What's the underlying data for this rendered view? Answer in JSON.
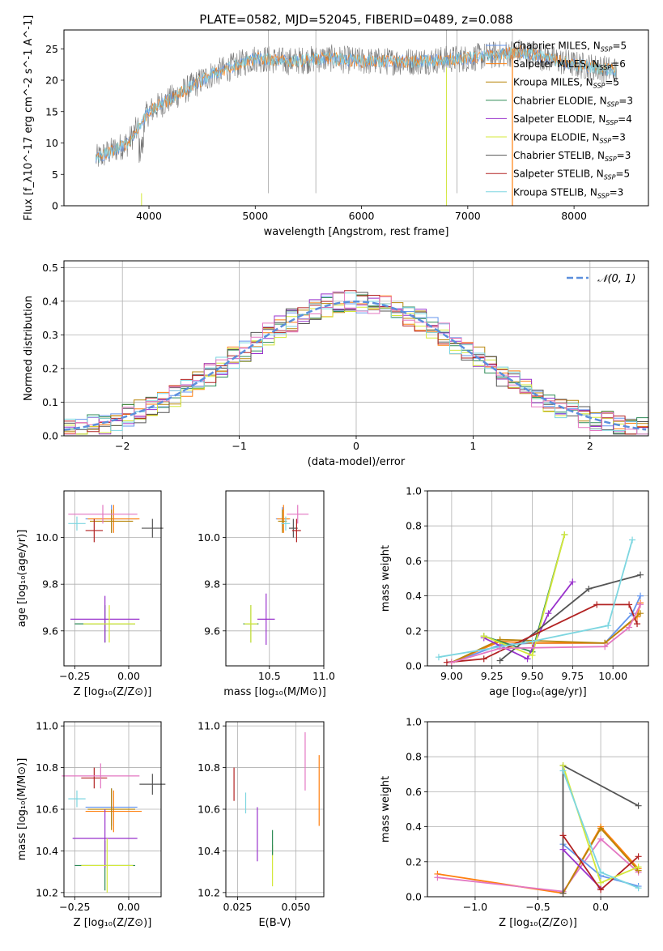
{
  "figure_title": "PLATE=0582, MJD=52045, FIBERID=0489, z=0.088",
  "colors": {
    "Chabrier MILES": "#6495ed",
    "Salpeter MILES": "#ff7f0e",
    "Kroupa MILES": "#b8860b",
    "Chabrier ELODIE": "#2e8b57",
    "Salpeter ELODIE": "#9932cc",
    "Kroupa ELODIE": "#d4e83a",
    "Chabrier STELIB": "#555555",
    "Salpeter STELIB": "#b22222",
    "Kroupa STELIB": "#7dd6e0",
    "pink": "#e377c2",
    "normal": "#5b8fdc"
  },
  "chart_data": [
    {
      "id": "spectrum",
      "type": "line",
      "title": "PLATE=0582, MJD=52045, FIBERID=0489, z=0.088",
      "xlabel": "wavelength [Angstrom, rest frame]",
      "ylabel": "Flux [f_λ10^-17 erg cm^-2 s^-1 A^-1]",
      "xlim": [
        3200,
        8700
      ],
      "ylim": [
        0,
        28
      ],
      "xticks": [
        4000,
        5000,
        6000,
        7000,
        8000
      ],
      "yticks": [
        0,
        5,
        10,
        15,
        20,
        25
      ],
      "legend_position": "right",
      "legend": [
        {
          "base": "Chabrier MILES, N",
          "n": "5"
        },
        {
          "base": "Salpeter MILES, N",
          "n": "6"
        },
        {
          "base": "Kroupa MILES, N",
          "n": "5"
        },
        {
          "base": "Chabrier ELODIE, N",
          "n": "3"
        },
        {
          "base": "Salpeter ELODIE, N",
          "n": "4"
        },
        {
          "base": "Kroupa ELODIE, N",
          "n": "3"
        },
        {
          "base": "Chabrier STELIB, N",
          "n": "3"
        },
        {
          "base": "Salpeter STELIB, N",
          "n": "5"
        },
        {
          "base": "Kroupa STELIB, N",
          "n": "3"
        }
      ],
      "legend_sub": "SSP",
      "continuum": {
        "x": [
          3500,
          3800,
          4000,
          4300,
          4600,
          5000,
          5300,
          5700,
          6000,
          6500,
          7000,
          7500,
          8000,
          8400
        ],
        "y": [
          7.5,
          10,
          15,
          18,
          21,
          23.5,
          23,
          23.5,
          23,
          23,
          23.5,
          24.5,
          22.5,
          21.5
        ]
      },
      "grid": false
    },
    {
      "id": "residuals",
      "type": "line",
      "xlabel": "(data-model)/error",
      "ylabel": "Normed distribution",
      "xlim": [
        -2.5,
        2.5
      ],
      "ylim": [
        0,
        0.52
      ],
      "xticks": [
        -2,
        -1,
        0,
        1,
        2
      ],
      "yticks": [
        0.0,
        0.1,
        0.2,
        0.3,
        0.4,
        0.5
      ],
      "legend_label": "𝒩(0, 1)",
      "legend_position": "upper right",
      "grid": true
    },
    {
      "id": "age_vs_Z",
      "type": "scatter",
      "xlabel": "Z [log₁₀(Z/Z⊙)]",
      "ylabel": "age  [log₁₀(age/yr)]",
      "xlim": [
        -0.3,
        0.15
      ],
      "ylim": [
        9.45,
        10.2
      ],
      "xticks": [
        -0.25,
        0.0
      ],
      "yticks": [
        9.6,
        9.8,
        10.0
      ],
      "grid": true,
      "points": [
        {
          "x": -0.08,
          "y": 10.08,
          "xerr": 0.12,
          "yerr": 0.06,
          "color": "#6495ed"
        },
        {
          "x": -0.07,
          "y": 10.08,
          "xerr": 0.12,
          "yerr": 0.06,
          "color": "#ff7f0e"
        },
        {
          "x": -0.08,
          "y": 10.07,
          "xerr": 0.1,
          "yerr": 0.05,
          "color": "#b8860b"
        },
        {
          "x": -0.11,
          "y": 9.63,
          "xerr": 0.14,
          "yerr": 0.08,
          "color": "#2e8b57"
        },
        {
          "x": -0.11,
          "y": 9.65,
          "xerr": 0.16,
          "yerr": 0.1,
          "color": "#9932cc"
        },
        {
          "x": -0.09,
          "y": 9.63,
          "xerr": 0.12,
          "yerr": 0.08,
          "color": "#d4e83a"
        },
        {
          "x": 0.11,
          "y": 10.04,
          "xerr": 0.05,
          "yerr": 0.04,
          "color": "#555555"
        },
        {
          "x": -0.16,
          "y": 10.03,
          "xerr": 0.04,
          "yerr": 0.05,
          "color": "#b22222"
        },
        {
          "x": -0.24,
          "y": 10.06,
          "xerr": 0.04,
          "yerr": 0.03,
          "color": "#7dd6e0"
        },
        {
          "x": -0.12,
          "y": 10.1,
          "xerr": 0.16,
          "yerr": 0.04,
          "color": "#e377c2"
        }
      ]
    },
    {
      "id": "age_vs_mass",
      "type": "scatter",
      "xlabel": "mass [log₁₀(M/M⊙)]",
      "ylabel": "",
      "xlim": [
        10.1,
        11.0
      ],
      "ylim": [
        9.45,
        10.2
      ],
      "xticks": [
        10.5,
        11.0
      ],
      "yticks": [
        9.6,
        9.8,
        10.0
      ],
      "grid": true,
      "points": [
        {
          "x": 10.62,
          "y": 10.08,
          "xerr": 0.06,
          "yerr": 0.05,
          "color": "#6495ed"
        },
        {
          "x": 10.63,
          "y": 10.08,
          "xerr": 0.06,
          "yerr": 0.06,
          "color": "#ff7f0e"
        },
        {
          "x": 10.62,
          "y": 10.07,
          "xerr": 0.04,
          "yerr": 0.05,
          "color": "#b8860b"
        },
        {
          "x": 10.33,
          "y": 9.63,
          "xerr": 0.07,
          "yerr": 0.08,
          "color": "#2e8b57"
        },
        {
          "x": 10.47,
          "y": 9.65,
          "xerr": 0.08,
          "yerr": 0.11,
          "color": "#9932cc"
        },
        {
          "x": 10.33,
          "y": 9.63,
          "xerr": 0.06,
          "yerr": 0.08,
          "color": "#d4e83a"
        },
        {
          "x": 10.72,
          "y": 10.04,
          "xerr": 0.04,
          "yerr": 0.04,
          "color": "#555555"
        },
        {
          "x": 10.75,
          "y": 10.03,
          "xerr": 0.04,
          "yerr": 0.05,
          "color": "#b22222"
        },
        {
          "x": 10.65,
          "y": 10.06,
          "xerr": 0.04,
          "yerr": 0.03,
          "color": "#7dd6e0"
        },
        {
          "x": 10.76,
          "y": 10.1,
          "xerr": 0.1,
          "yerr": 0.04,
          "color": "#e377c2"
        }
      ]
    },
    {
      "id": "weight_vs_age",
      "type": "line",
      "xlabel": "age  [log₁₀(age/yr)]",
      "ylabel": "mass weight",
      "xlim": [
        8.85,
        10.22
      ],
      "ylim": [
        0,
        1.0
      ],
      "xticks": [
        9.0,
        9.25,
        9.5,
        9.75,
        10.0
      ],
      "yticks": [
        0.0,
        0.2,
        0.4,
        0.6,
        0.8,
        1.0
      ],
      "grid": true,
      "series": [
        {
          "color": "#6495ed",
          "x": [
            9.0,
            9.3,
            9.5,
            9.95,
            10.12,
            10.17
          ],
          "y": [
            0.02,
            0.12,
            0.13,
            0.13,
            0.3,
            0.4
          ]
        },
        {
          "color": "#ff7f0e",
          "x": [
            9.0,
            9.3,
            9.5,
            9.95,
            10.15,
            10.17
          ],
          "y": [
            0.02,
            0.14,
            0.13,
            0.13,
            0.28,
            0.36
          ]
        },
        {
          "color": "#b8860b",
          "x": [
            9.0,
            9.3,
            9.95,
            10.17
          ],
          "y": [
            0.02,
            0.15,
            0.13,
            0.3
          ]
        },
        {
          "color": "#2e8b57",
          "x": [
            9.2,
            9.5,
            9.7
          ],
          "y": [
            0.17,
            0.08,
            0.75
          ]
        },
        {
          "color": "#9932cc",
          "x": [
            9.2,
            9.47,
            9.6,
            9.75
          ],
          "y": [
            0.16,
            0.04,
            0.3,
            0.48
          ]
        },
        {
          "color": "#d4e83a",
          "x": [
            9.2,
            9.5,
            9.7
          ],
          "y": [
            0.17,
            0.06,
            0.75
          ]
        },
        {
          "color": "#555555",
          "x": [
            9.3,
            9.85,
            10.17
          ],
          "y": [
            0.03,
            0.44,
            0.52
          ]
        },
        {
          "color": "#b22222",
          "x": [
            8.97,
            9.2,
            9.9,
            10.1,
            10.15
          ],
          "y": [
            0.02,
            0.04,
            0.35,
            0.35,
            0.24
          ]
        },
        {
          "color": "#7dd6e0",
          "x": [
            8.92,
            9.5,
            9.97,
            10.12
          ],
          "y": [
            0.05,
            0.14,
            0.23,
            0.72
          ]
        },
        {
          "color": "#e377c2",
          "x": [
            9.0,
            9.3,
            9.95,
            10.1,
            10.17
          ],
          "y": [
            0.02,
            0.1,
            0.11,
            0.22,
            0.35
          ]
        }
      ]
    },
    {
      "id": "mass_vs_Z",
      "type": "scatter",
      "xlabel": "Z [log₁₀(Z/Z⊙)]",
      "ylabel": "mass [log₁₀(M/M⊙)]",
      "xlim": [
        -0.3,
        0.15
      ],
      "ylim": [
        10.18,
        11.02
      ],
      "xticks": [
        -0.25,
        0.0
      ],
      "yticks": [
        10.2,
        10.4,
        10.6,
        10.8,
        11.0
      ],
      "grid": true,
      "points": [
        {
          "x": -0.08,
          "y": 10.61,
          "xerr": 0.12,
          "yerr": 0.09,
          "color": "#6495ed"
        },
        {
          "x": -0.07,
          "y": 10.59,
          "xerr": 0.13,
          "yerr": 0.1,
          "color": "#ff7f0e"
        },
        {
          "x": -0.08,
          "y": 10.6,
          "xerr": 0.11,
          "yerr": 0.1,
          "color": "#b8860b"
        },
        {
          "x": -0.11,
          "y": 10.33,
          "xerr": 0.14,
          "yerr": 0.12,
          "color": "#2e8b57"
        },
        {
          "x": -0.11,
          "y": 10.46,
          "xerr": 0.15,
          "yerr": 0.14,
          "color": "#9932cc"
        },
        {
          "x": -0.1,
          "y": 10.33,
          "xerr": 0.12,
          "yerr": 0.13,
          "color": "#d4e83a"
        },
        {
          "x": 0.11,
          "y": 10.72,
          "xerr": 0.06,
          "yerr": 0.05,
          "color": "#555555"
        },
        {
          "x": -0.16,
          "y": 10.75,
          "xerr": 0.06,
          "yerr": 0.05,
          "color": "#b22222"
        },
        {
          "x": -0.24,
          "y": 10.65,
          "xerr": 0.04,
          "yerr": 0.04,
          "color": "#7dd6e0"
        },
        {
          "x": -0.13,
          "y": 10.76,
          "xerr": 0.18,
          "yerr": 0.06,
          "color": "#e377c2"
        }
      ]
    },
    {
      "id": "mass_vs_ebv",
      "type": "scatter",
      "xlabel": "E(B-V)",
      "ylabel": "",
      "xlim": [
        0.02,
        0.062
      ],
      "ylim": [
        10.18,
        11.02
      ],
      "xticks": [
        0.025,
        0.05
      ],
      "yticks": [
        10.2,
        10.4,
        10.6,
        10.8,
        11.0
      ],
      "grid": true,
      "points": [
        {
          "x": 0.06,
          "y": 10.69,
          "yerr": 0.17,
          "color": "#ff7f0e"
        },
        {
          "x": 0.054,
          "y": 10.83,
          "yerr": 0.14,
          "color": "#e377c2"
        },
        {
          "x": 0.0235,
          "y": 10.72,
          "yerr": 0.08,
          "color": "#b22222"
        },
        {
          "x": 0.0285,
          "y": 10.63,
          "yerr": 0.05,
          "color": "#7dd6e0"
        },
        {
          "x": 0.0335,
          "y": 10.48,
          "yerr": 0.13,
          "color": "#9932cc"
        },
        {
          "x": 0.04,
          "y": 10.33,
          "yerr": 0.1,
          "color": "#d4e83a"
        },
        {
          "x": 0.04,
          "y": 10.44,
          "yerr": 0.06,
          "color": "#2e8b57"
        }
      ]
    },
    {
      "id": "weight_vs_Z",
      "type": "line",
      "xlabel": "Z [log₁₀(Z/Z⊙)]",
      "ylabel": "mass weight",
      "xlim": [
        -1.38,
        0.38
      ],
      "ylim": [
        0,
        1.0
      ],
      "xticks": [
        -1.0,
        -0.5,
        0.0
      ],
      "yticks": [
        0.0,
        0.2,
        0.4,
        0.6,
        0.8,
        1.0
      ],
      "grid": true,
      "series": [
        {
          "color": "#ff7f0e",
          "x": [
            -1.3,
            -0.3,
            0.0,
            0.3
          ],
          "y": [
            0.13,
            0.02,
            0.4,
            0.16
          ]
        },
        {
          "color": "#e377c2",
          "x": [
            -1.3,
            -0.3,
            0.0,
            0.3
          ],
          "y": [
            0.11,
            0.03,
            0.33,
            0.14
          ]
        },
        {
          "color": "#b8860b",
          "x": [
            -0.3,
            0.0,
            0.3
          ],
          "y": [
            0.02,
            0.39,
            0.15
          ]
        },
        {
          "color": "#6495ed",
          "x": [
            -0.3,
            0.0,
            0.3
          ],
          "y": [
            0.3,
            0.12,
            0.06
          ]
        },
        {
          "color": "#555555",
          "x": [
            -0.3,
            -0.3,
            0.3
          ],
          "y": [
            0.02,
            0.75,
            0.52
          ]
        },
        {
          "color": "#9932cc",
          "x": [
            -0.3,
            0.0
          ],
          "y": [
            0.27,
            0.05
          ]
        },
        {
          "color": "#b22222",
          "x": [
            -0.3,
            0.0,
            0.3
          ],
          "y": [
            0.35,
            0.04,
            0.23
          ]
        },
        {
          "color": "#d4e83a",
          "x": [
            -0.3,
            0.0,
            0.3
          ],
          "y": [
            0.75,
            0.08,
            0.17
          ]
        },
        {
          "color": "#7dd6e0",
          "x": [
            -0.3,
            0.0,
            0.3
          ],
          "y": [
            0.72,
            0.14,
            0.05
          ]
        }
      ]
    }
  ]
}
